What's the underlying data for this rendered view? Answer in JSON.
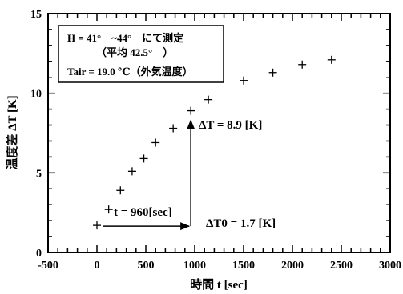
{
  "chart_data": {
    "type": "scatter",
    "title": "",
    "xlabel": "時間 t [sec]",
    "ylabel": "温度差 ΔT [K]",
    "xlim": [
      -500,
      3000
    ],
    "ylim": [
      0,
      15
    ],
    "x_ticks": [
      -500,
      0,
      500,
      1000,
      1500,
      2000,
      2500,
      3000
    ],
    "y_ticks": [
      0,
      5,
      10,
      15
    ],
    "grid": false,
    "marker": "plus",
    "series": [
      {
        "x": [
          0,
          120,
          240,
          360,
          480,
          600,
          780,
          960,
          1140,
          1500,
          1800,
          2100,
          2400
        ],
        "y": [
          1.7,
          2.7,
          3.9,
          5.1,
          5.9,
          6.9,
          7.8,
          8.9,
          9.6,
          10.8,
          11.3,
          11.8,
          12.1
        ]
      }
    ],
    "note_box": {
      "line1": "H = 41°　~44°　にて測定",
      "line2": "（平均 42.5°　）",
      "line3": "Tair = 19.0 ℃（外気温度）"
    },
    "annotations": {
      "t_label": "t = 960[sec]",
      "dt_label": "ΔT = 8.9 [K]",
      "dt0_label": "ΔT0 = 1.7 [K]",
      "arrow_start": {
        "x": 0,
        "y": 1.7
      },
      "arrow_end_h": {
        "x": 960,
        "y": 1.7
      },
      "arrow_end_v": {
        "x": 960,
        "y": 8.9
      }
    }
  }
}
